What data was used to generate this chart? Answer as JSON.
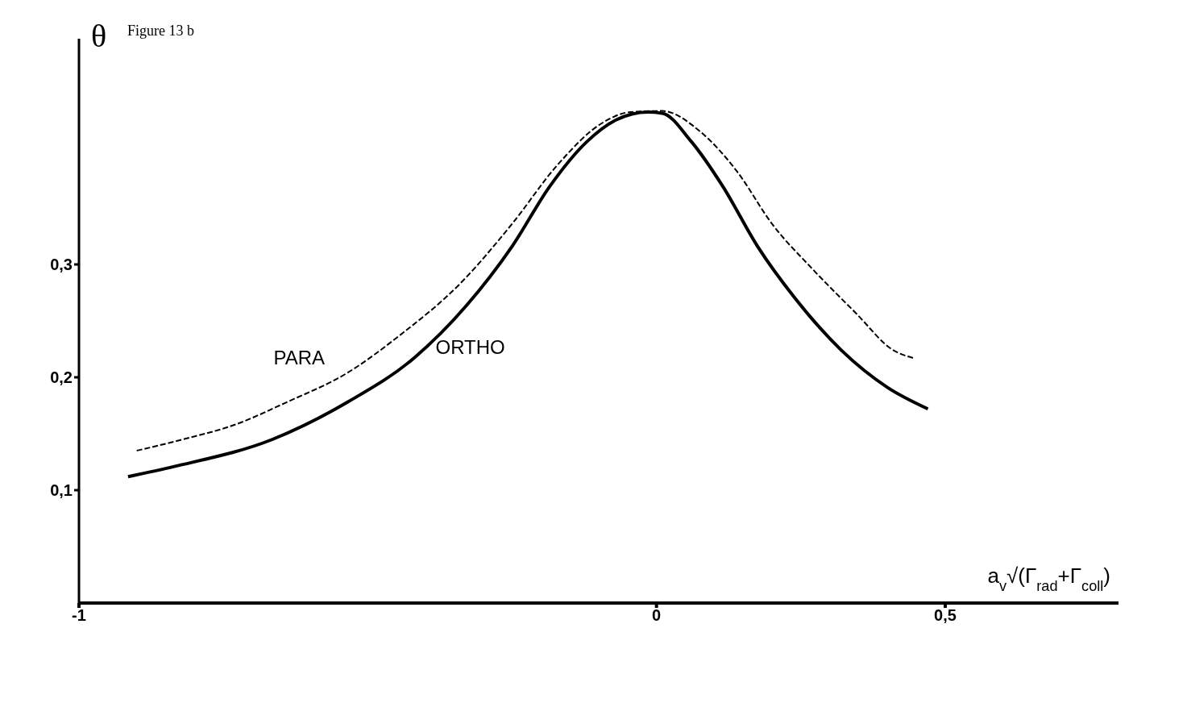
{
  "chart_data": {
    "type": "line",
    "title": "Figure 13 b",
    "xlabel": "a$_{v}$√(Γ$_{rad}$+Γ$_{coll}$)",
    "ylabel": "θ",
    "xlim": [
      -1,
      0.8
    ],
    "xticks": [
      -1,
      0,
      {
        "value": 0.5,
        "label": "0,5"
      }
    ],
    "ylim": [
      0,
      0.5
    ],
    "yticks": [
      {
        "value": 0.1,
        "label": "0,1"
      },
      {
        "value": 0.2,
        "label": "0,2"
      },
      {
        "value": 0.3,
        "label": "0,3"
      }
    ],
    "marker": "none",
    "series": [
      {
        "name": "PARA",
        "color": "#000000",
        "line_style": "dashed",
        "x": [
          -0.9,
          -0.82,
          -0.73,
          -0.64,
          -0.535,
          -0.445,
          -0.34,
          -0.25,
          -0.17,
          -0.095,
          -0.045,
          0.01,
          0.075,
          0.14,
          0.2,
          0.27,
          0.345,
          0.41,
          0.445
        ],
        "values": [
          0.135,
          0.145,
          0.158,
          0.178,
          0.204,
          0.237,
          0.283,
          0.336,
          0.389,
          0.425,
          0.435,
          0.436,
          0.418,
          0.382,
          0.336,
          0.296,
          0.257,
          0.224,
          0.217
        ]
      },
      {
        "name": "ORTHO",
        "color": "#000000",
        "line_style": "solid",
        "x": [
          -0.915,
          -0.835,
          -0.665,
          -0.535,
          -0.42,
          -0.33,
          -0.25,
          -0.185,
          -0.12,
          -0.07,
          -0.015,
          0.01,
          0.06,
          0.115,
          0.175,
          0.24,
          0.32,
          0.4,
          0.47
        ],
        "values": [
          0.112,
          0.121,
          0.145,
          0.178,
          0.217,
          0.263,
          0.316,
          0.369,
          0.409,
          0.428,
          0.435,
          0.434,
          0.409,
          0.369,
          0.316,
          0.27,
          0.224,
          0.191,
          0.172
        ]
      }
    ]
  }
}
